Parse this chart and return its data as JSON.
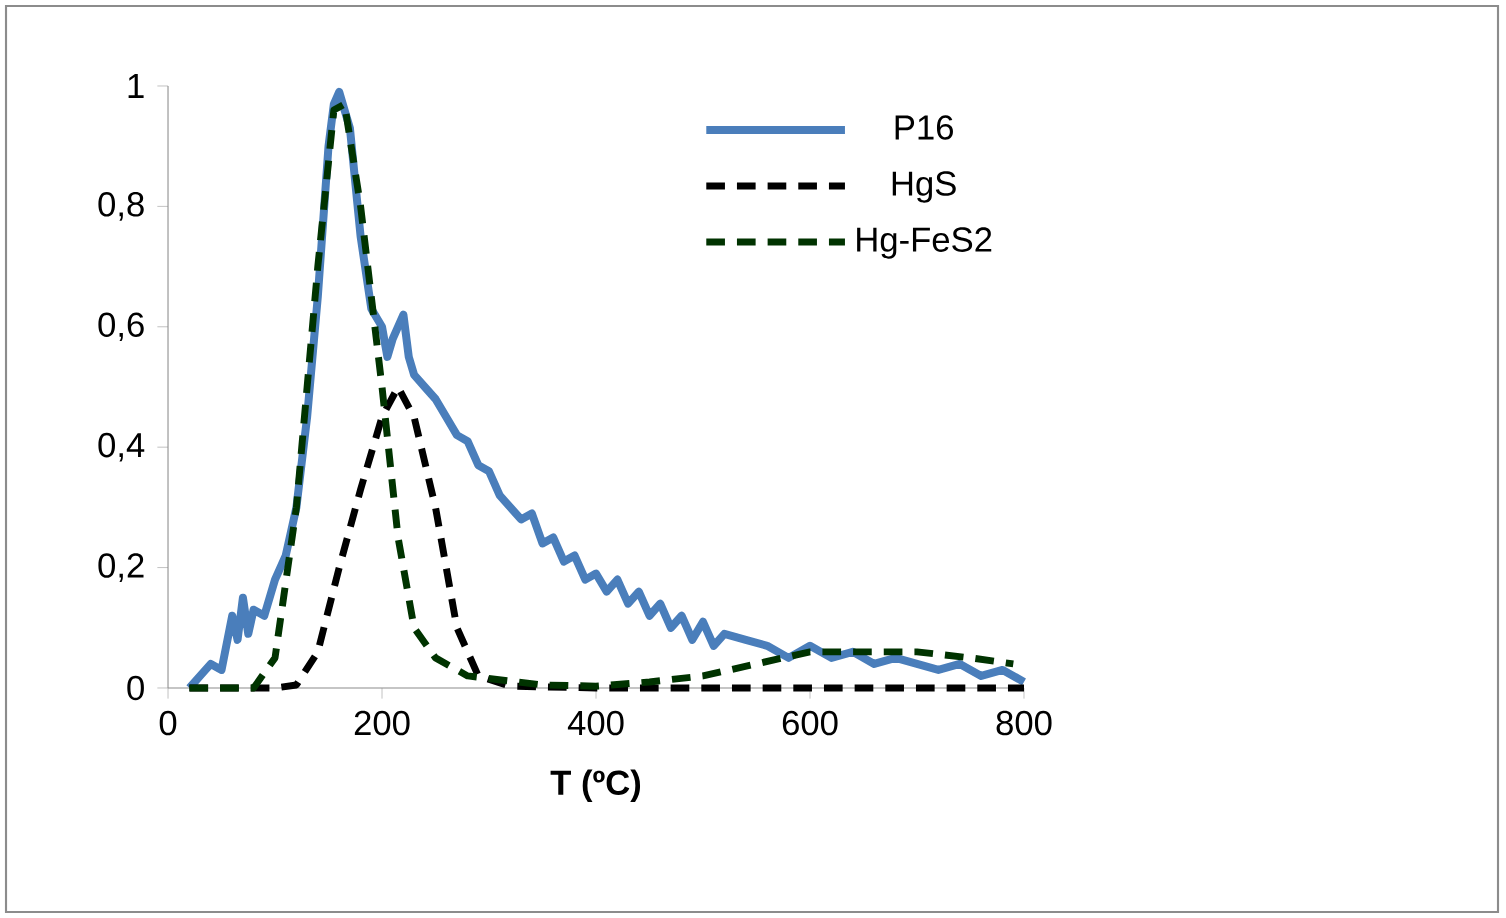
{
  "chart_data": {
    "type": "line",
    "xlabel": "T (ºC)",
    "xlim": [
      0,
      800
    ],
    "xticks": [
      0,
      200,
      400,
      600,
      800
    ],
    "ylim": [
      0,
      1
    ],
    "yticks": [
      0,
      {
        "value": 0.2,
        "label": "0,2"
      },
      {
        "value": 0.4,
        "label": "0,4"
      },
      {
        "value": 0.6,
        "label": "0,6"
      },
      {
        "value": 0.8,
        "label": "0,8"
      },
      1
    ],
    "grid": false,
    "legend": "top right",
    "marker": "none",
    "series": [
      {
        "name": "P16",
        "color": "#4a7ebb",
        "line_style": "solid",
        "x": [
          20,
          30,
          40,
          50,
          60,
          65,
          70,
          75,
          80,
          90,
          100,
          110,
          120,
          130,
          140,
          150,
          155,
          160,
          165,
          170,
          180,
          190,
          200,
          205,
          210,
          220,
          225,
          230,
          240,
          250,
          260,
          270,
          280,
          290,
          300,
          310,
          320,
          330,
          340,
          350,
          360,
          370,
          380,
          390,
          400,
          410,
          420,
          430,
          440,
          450,
          460,
          470,
          480,
          490,
          500,
          510,
          520,
          540,
          560,
          580,
          600,
          620,
          640,
          660,
          680,
          700,
          720,
          740,
          760,
          780,
          800
        ],
        "values": [
          0,
          0.02,
          0.04,
          0.03,
          0.12,
          0.08,
          0.15,
          0.09,
          0.13,
          0.12,
          0.18,
          0.22,
          0.3,
          0.45,
          0.65,
          0.9,
          0.97,
          0.99,
          0.96,
          0.93,
          0.75,
          0.63,
          0.6,
          0.55,
          0.58,
          0.62,
          0.55,
          0.52,
          0.5,
          0.48,
          0.45,
          0.42,
          0.41,
          0.37,
          0.36,
          0.32,
          0.3,
          0.28,
          0.29,
          0.24,
          0.25,
          0.21,
          0.22,
          0.18,
          0.19,
          0.16,
          0.18,
          0.14,
          0.16,
          0.12,
          0.14,
          0.1,
          0.12,
          0.08,
          0.11,
          0.07,
          0.09,
          0.08,
          0.07,
          0.05,
          0.07,
          0.05,
          0.06,
          0.04,
          0.05,
          0.04,
          0.03,
          0.04,
          0.02,
          0.03,
          0.01
        ]
      },
      {
        "name": "HgS",
        "color": "#000000",
        "line_style": "dashed",
        "x": [
          20,
          100,
          120,
          140,
          160,
          180,
          200,
          215,
          230,
          250,
          270,
          290,
          320,
          400,
          500,
          600,
          700,
          800
        ],
        "values": [
          0,
          0,
          0.005,
          0.06,
          0.2,
          0.33,
          0.45,
          0.5,
          0.45,
          0.3,
          0.1,
          0.02,
          0.003,
          0,
          0,
          0,
          0,
          0
        ]
      },
      {
        "name": "Hg-FeS2",
        "color": "#003300",
        "line_style": "dashed",
        "x": [
          20,
          80,
          100,
          120,
          140,
          155,
          165,
          180,
          200,
          215,
          230,
          250,
          280,
          350,
          400,
          450,
          500,
          550,
          600,
          650,
          700,
          750,
          790
        ],
        "values": [
          0,
          0,
          0.05,
          0.3,
          0.7,
          0.96,
          0.97,
          0.8,
          0.5,
          0.25,
          0.1,
          0.05,
          0.02,
          0.005,
          0.003,
          0.01,
          0.02,
          0.04,
          0.06,
          0.06,
          0.06,
          0.05,
          0.04
        ]
      }
    ]
  }
}
